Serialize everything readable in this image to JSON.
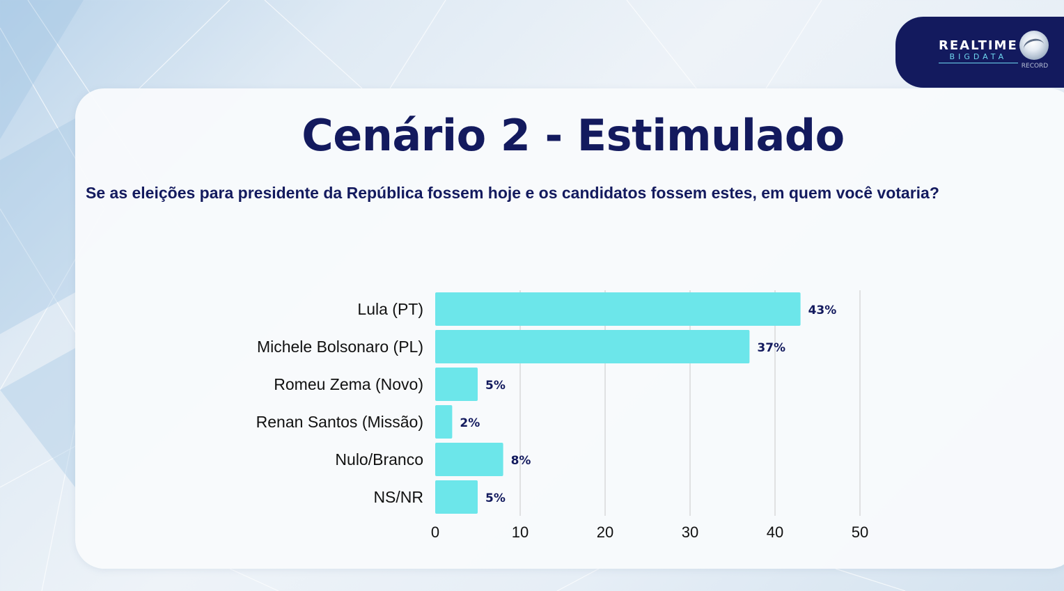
{
  "header": {
    "logo_main": "REALTIME",
    "logo_sub": "BIGDATA",
    "logo_record": "RECORD"
  },
  "title": "Cenário 2 - Estimulado",
  "subtitle": "Se as eleições para presidente da República fossem hoje e os candidatos fossem estes, em quem você votaria?",
  "chart_data": {
    "type": "bar",
    "orientation": "horizontal",
    "categories": [
      "Lula (PT)",
      "Michele Bolsonaro (PL)",
      "Romeu Zema (Novo)",
      "Renan Santos (Missão)",
      "Nulo/Branco",
      "NS/NR"
    ],
    "values": [
      43,
      37,
      5,
      2,
      8,
      5
    ],
    "data_labels": [
      "43%",
      "37%",
      "5%",
      "2%",
      "8%",
      "5%"
    ],
    "xlim": [
      0,
      50
    ],
    "xticks": [
      0,
      10,
      20,
      30,
      40,
      50
    ],
    "grid": true,
    "bar_color": "#6ce6ea",
    "label_color": "#131a5e"
  }
}
